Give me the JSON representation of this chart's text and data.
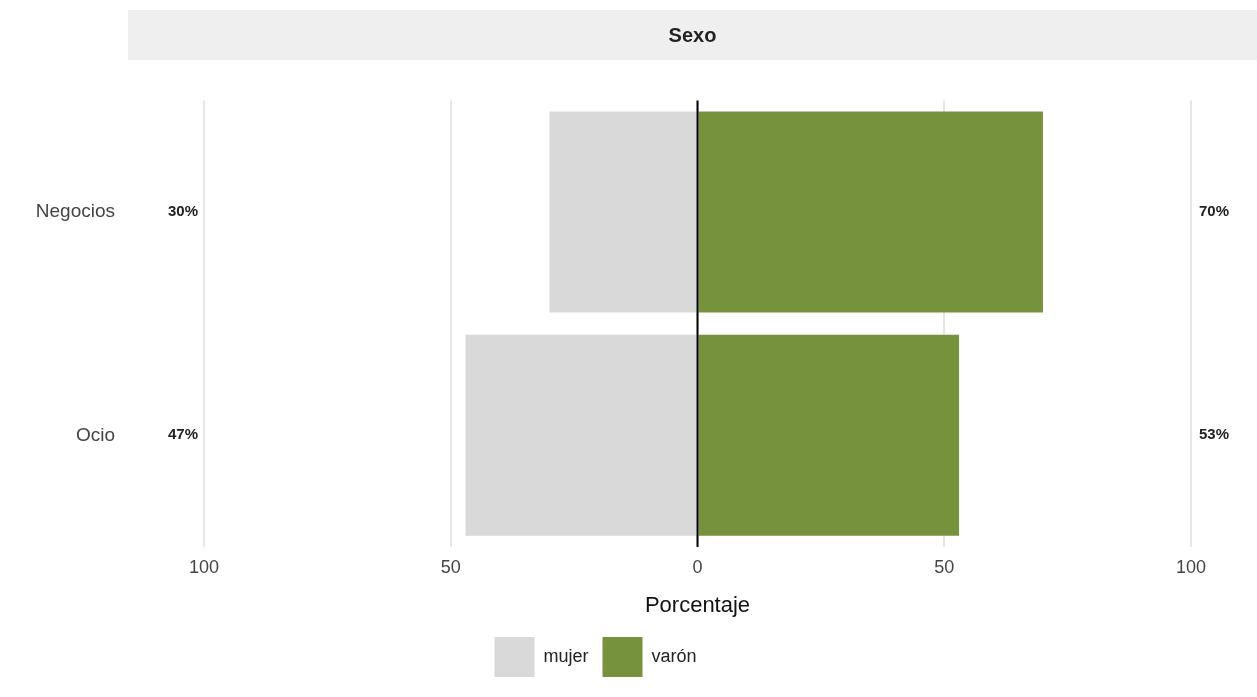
{
  "chart_data": {
    "type": "bar",
    "orientation": "horizontal",
    "stacked": true,
    "title": "Sexo",
    "xlabel": "Porcentaje",
    "categories": [
      "Negocios",
      "Ocio"
    ],
    "series": [
      {
        "name": "mujer",
        "color": "#d9d9d9",
        "values": [
          -30,
          -47
        ]
      },
      {
        "name": "varón",
        "color": "#76923c",
        "values": [
          70,
          53
        ]
      }
    ],
    "annotations": [
      "30%",
      "47%",
      "70%",
      "53%"
    ],
    "xlim": [
      -100,
      100
    ],
    "xticks": [
      {
        "value": -100,
        "label": "100"
      },
      {
        "value": -50,
        "label": "50"
      },
      0,
      50,
      100
    ],
    "ref_lines": [
      {
        "axis": "x",
        "value": 0,
        "color": "#000000"
      }
    ],
    "grid": "x",
    "legend": "bottom"
  }
}
